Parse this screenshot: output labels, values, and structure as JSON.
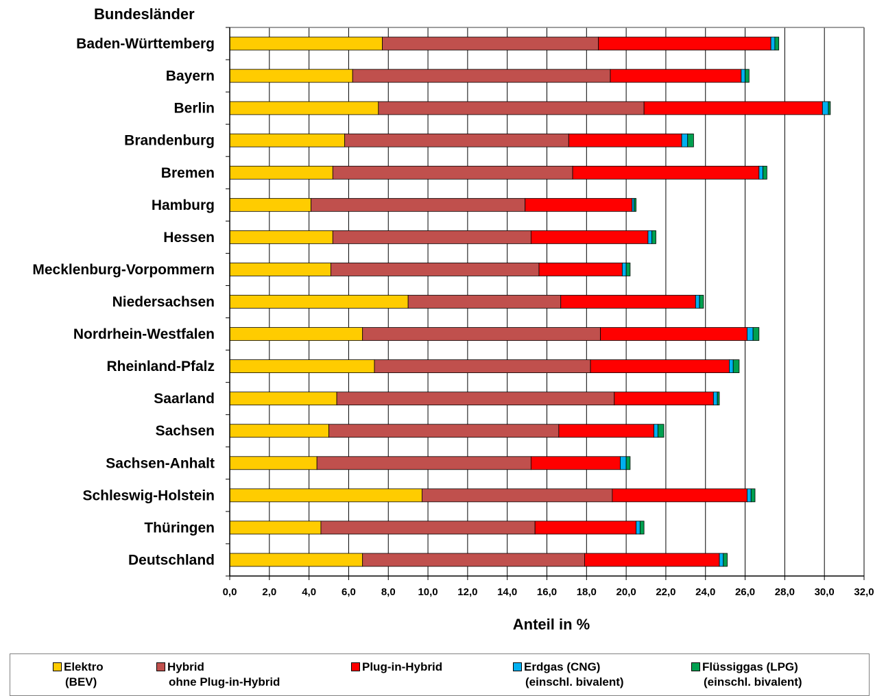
{
  "chart_data": {
    "type": "bar",
    "orientation": "horizontal",
    "stacked": true,
    "title": "",
    "categories_label": "Bundesländer",
    "xlabel": "Anteil in %",
    "xlim": [
      0,
      32
    ],
    "xticks": [
      "0,0",
      "2,0",
      "4,0",
      "6,0",
      "8,0",
      "10,0",
      "12,0",
      "14,0",
      "16,0",
      "18,0",
      "20,0",
      "22,0",
      "24,0",
      "26,0",
      "28,0",
      "30,0",
      "32,0"
    ],
    "grid": "vertical",
    "legend_position": "bottom",
    "categories": [
      "Baden-Württemberg",
      "Bayern",
      "Berlin",
      "Brandenburg",
      "Bremen",
      "Hamburg",
      "Hessen",
      "Mecklenburg-Vorpommern",
      "Niedersachsen",
      "Nordrhein-Westfalen",
      "Rheinland-Pfalz",
      "Saarland",
      "Sachsen",
      "Sachsen-Anhalt",
      "Schleswig-Holstein",
      "Thüringen",
      "Deutschland"
    ],
    "series": [
      {
        "name": "Elektro",
        "name_line2": "(BEV)",
        "color": "#ffcc00",
        "values": [
          7.7,
          6.2,
          7.5,
          5.8,
          5.2,
          4.1,
          5.2,
          5.1,
          9.0,
          6.7,
          7.3,
          5.4,
          5.0,
          4.4,
          9.7,
          4.6,
          6.7
        ]
      },
      {
        "name": "Hybrid",
        "name_line2": "ohne Plug-in-Hybrid",
        "color": "#c0504d",
        "values": [
          10.9,
          13.0,
          13.4,
          11.3,
          12.1,
          10.8,
          10.0,
          10.5,
          7.7,
          12.0,
          10.9,
          14.0,
          11.6,
          10.8,
          9.6,
          10.8,
          11.2
        ]
      },
      {
        "name": "Plug-in-Hybrid",
        "name_line2": "",
        "color": "#ff0000",
        "values": [
          8.7,
          6.6,
          9.0,
          5.7,
          9.4,
          5.4,
          5.9,
          4.2,
          6.8,
          7.4,
          7.0,
          5.0,
          4.8,
          4.5,
          6.8,
          5.1,
          6.8
        ]
      },
      {
        "name": "Erdgas (CNG)",
        "name_line2": "(einschl. bivalent)",
        "color": "#00b0f0",
        "values": [
          0.2,
          0.2,
          0.3,
          0.3,
          0.2,
          0.1,
          0.2,
          0.2,
          0.2,
          0.3,
          0.2,
          0.2,
          0.2,
          0.3,
          0.2,
          0.2,
          0.2
        ]
      },
      {
        "name": "Flüssiggas (LPG)",
        "name_line2": "(einschl. bivalent)",
        "color": "#00a050",
        "values": [
          0.2,
          0.2,
          0.1,
          0.3,
          0.2,
          0.1,
          0.2,
          0.2,
          0.2,
          0.3,
          0.3,
          0.1,
          0.3,
          0.2,
          0.2,
          0.2,
          0.2
        ]
      }
    ]
  }
}
